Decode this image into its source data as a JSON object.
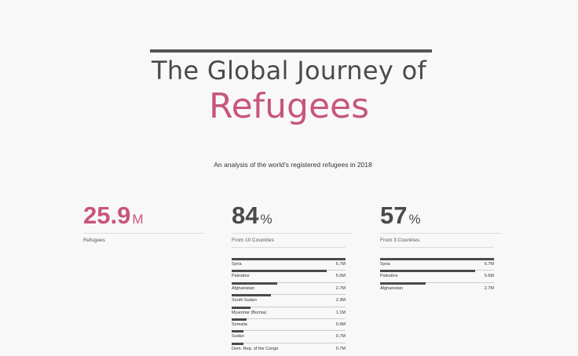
{
  "title": {
    "line1": "The Global Journey of",
    "line2": "Refugees"
  },
  "subtitle": "An analysis of the world's registered refugees in 2018",
  "colors": {
    "accent": "#c8567a",
    "text": "#4a4a4a",
    "background": "#f8f8f8"
  },
  "stats": [
    {
      "value": "25.9",
      "unit": "M",
      "caption": "Refugees"
    },
    {
      "value": "84",
      "unit": "%",
      "caption": "From 10 Countries"
    },
    {
      "value": "57",
      "unit": "%",
      "caption": "From 3 Countries"
    }
  ],
  "top10": [
    {
      "name": "Syria",
      "value": 6.7,
      "label": "6.7M"
    },
    {
      "name": "Palestine",
      "value": 5.6,
      "label": "5.6M"
    },
    {
      "name": "Afghanistan",
      "value": 2.7,
      "label": "2.7M"
    },
    {
      "name": "South Sudan",
      "value": 2.3,
      "label": "2.3M"
    },
    {
      "name": "Myanmar (Burma)",
      "value": 1.1,
      "label": "1.1M"
    },
    {
      "name": "Somalia",
      "value": 0.9,
      "label": "0.9M"
    },
    {
      "name": "Sudan",
      "value": 0.7,
      "label": "0.7M"
    },
    {
      "name": "Dem. Rep. of the Congo",
      "value": 0.7,
      "label": "0.7M"
    }
  ],
  "top3": [
    {
      "name": "Syria",
      "value": 6.7,
      "label": "6.7M"
    },
    {
      "name": "Palestine",
      "value": 5.6,
      "label": "5.6M"
    },
    {
      "name": "Afghanistan",
      "value": 2.7,
      "label": "2.7M"
    }
  ],
  "bar_max": 6.7
}
